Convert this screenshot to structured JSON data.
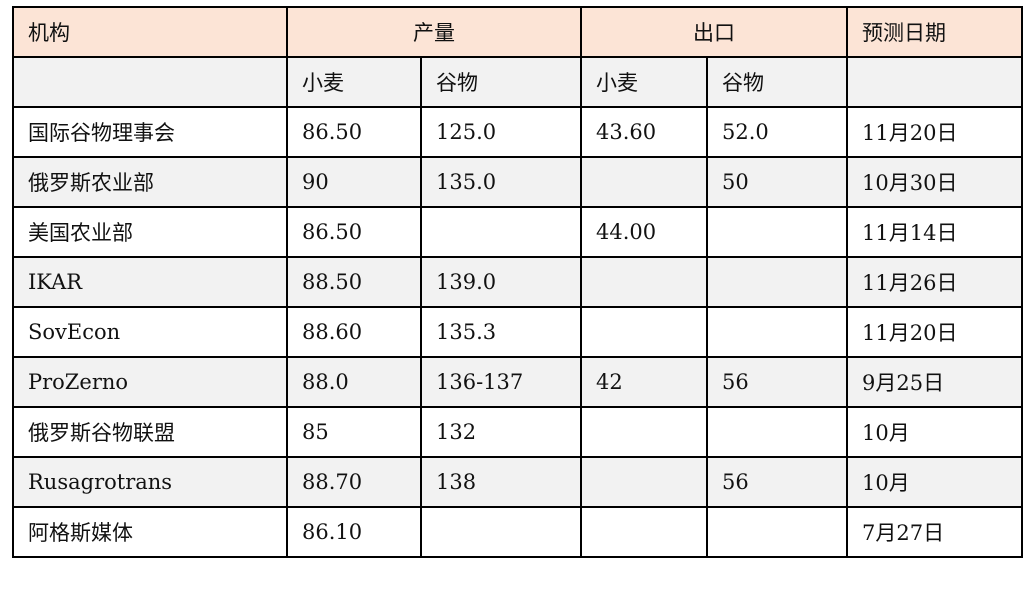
{
  "header": {
    "org": "机构",
    "production": "产量",
    "export": "出口",
    "date": "预测日期"
  },
  "sub": [
    "小麦",
    "谷物",
    "小麦",
    "谷物"
  ],
  "rows": [
    [
      "国际谷物理事会",
      "86.50",
      "125.0",
      "43.60",
      "52.0",
      "11月20日"
    ],
    [
      "俄罗斯农业部",
      "90",
      "135.0",
      "",
      "50",
      "10月30日"
    ],
    [
      "美国农业部",
      "86.50",
      "",
      "44.00",
      "",
      "11月14日"
    ],
    [
      "IKAR",
      "88.50",
      "139.0",
      "",
      "",
      "11月26日"
    ],
    [
      "SovEcon",
      "88.60",
      "135.3",
      "",
      "",
      "11月20日"
    ],
    [
      "ProZerno",
      "88.0",
      "136-137",
      "42",
      "56",
      "9月25日"
    ],
    [
      "俄罗斯谷物联盟",
      "85",
      "132",
      "",
      "",
      "10月"
    ],
    [
      "Rusagrotrans",
      "88.70",
      "138",
      "",
      "56",
      "10月"
    ],
    [
      "阿格斯媒体",
      "86.10",
      "",
      "",
      "",
      "7月27日"
    ]
  ],
  "colors": {
    "header_bg": "#fce4d6",
    "shade_bg": "#f2f2f2"
  }
}
